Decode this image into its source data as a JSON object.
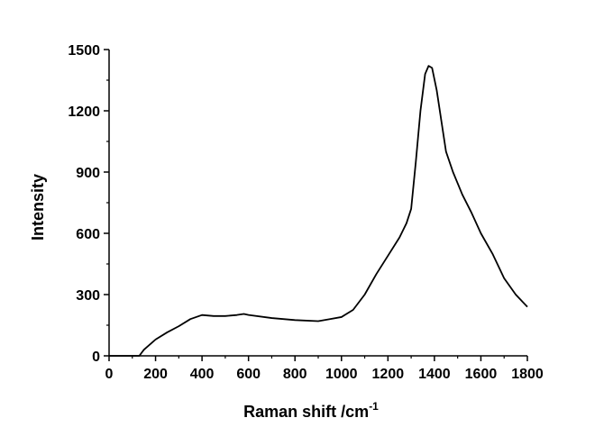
{
  "chart_data": {
    "type": "line",
    "xlabel": "Raman shift /cm",
    "xlabel_sup": "-1",
    "ylabel": "Intensity",
    "x": [
      0,
      100,
      130,
      150,
      200,
      250,
      300,
      350,
      400,
      450,
      500,
      550,
      580,
      600,
      700,
      800,
      900,
      950,
      1000,
      1050,
      1100,
      1150,
      1200,
      1250,
      1280,
      1300,
      1320,
      1340,
      1360,
      1375,
      1390,
      1410,
      1430,
      1450,
      1480,
      1520,
      1560,
      1600,
      1650,
      1700,
      1750,
      1800
    ],
    "values": [
      0,
      0,
      0,
      30,
      80,
      115,
      145,
      180,
      200,
      195,
      195,
      200,
      205,
      200,
      185,
      175,
      170,
      180,
      190,
      225,
      300,
      400,
      490,
      580,
      650,
      720,
      950,
      1200,
      1380,
      1420,
      1410,
      1300,
      1150,
      1000,
      900,
      790,
      700,
      600,
      500,
      380,
      300,
      240
    ],
    "color": "#000000",
    "xlim": [
      0,
      1800
    ],
    "xticks": [
      0,
      200,
      400,
      600,
      800,
      1000,
      1200,
      1400,
      1600,
      1800
    ],
    "ylim": [
      0,
      1500
    ],
    "yticks": [
      0,
      300,
      600,
      900,
      1200,
      1500
    ]
  }
}
